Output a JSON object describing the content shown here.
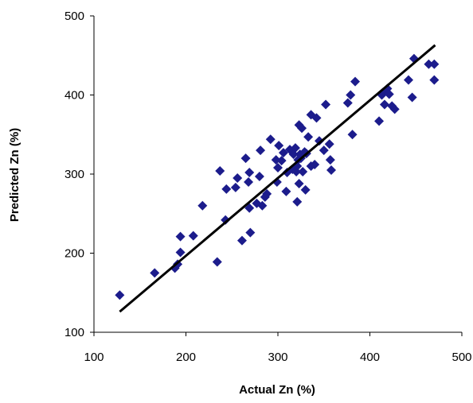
{
  "chart_data": {
    "type": "scatter",
    "title": "",
    "xlabel": "Actual Zn (%)",
    "ylabel": "Predicted Zn (%)",
    "xlim": [
      100,
      500
    ],
    "ylim": [
      100,
      500
    ],
    "xticks": [
      "100",
      "200",
      "300",
      "400",
      "500"
    ],
    "yticks": [
      "100",
      "200",
      "300",
      "400",
      "500"
    ],
    "grid": false,
    "legend": "none",
    "marker": "diamond",
    "marker_color": "#1c1c8c",
    "line_color": "#000000",
    "series": [
      {
        "points": [
          [
            128,
            147
          ],
          [
            166,
            175
          ],
          [
            188,
            181
          ],
          [
            191,
            186
          ],
          [
            194,
            201
          ],
          [
            194,
            221
          ],
          [
            208,
            222
          ],
          [
            218,
            260
          ],
          [
            234,
            189
          ],
          [
            237,
            304
          ],
          [
            243,
            242
          ],
          [
            244,
            281
          ],
          [
            254,
            283
          ],
          [
            256,
            295
          ],
          [
            261,
            216
          ],
          [
            265,
            320
          ],
          [
            268,
            290
          ],
          [
            269,
            257
          ],
          [
            269,
            302
          ],
          [
            270,
            226
          ],
          [
            277,
            263
          ],
          [
            280,
            297
          ],
          [
            281,
            330
          ],
          [
            283,
            260
          ],
          [
            286,
            271
          ],
          [
            288,
            275
          ],
          [
            292,
            344
          ],
          [
            298,
            318
          ],
          [
            299,
            290
          ],
          [
            300,
            308
          ],
          [
            301,
            336
          ],
          [
            304,
            317
          ],
          [
            306,
            327
          ],
          [
            309,
            278
          ],
          [
            310,
            302
          ],
          [
            313,
            331
          ],
          [
            316,
            306
          ],
          [
            317,
            325
          ],
          [
            319,
            333
          ],
          [
            320,
            303
          ],
          [
            321,
            265
          ],
          [
            321,
            310
          ],
          [
            322,
            318
          ],
          [
            323,
            362
          ],
          [
            323,
            288
          ],
          [
            324,
            325
          ],
          [
            325,
            320
          ],
          [
            326,
            358
          ],
          [
            327,
            303
          ],
          [
            329,
            328
          ],
          [
            330,
            280
          ],
          [
            331,
            326
          ],
          [
            333,
            347
          ],
          [
            336,
            310
          ],
          [
            336,
            375
          ],
          [
            340,
            312
          ],
          [
            342,
            371
          ],
          [
            345,
            342
          ],
          [
            350,
            330
          ],
          [
            352,
            388
          ],
          [
            356,
            338
          ],
          [
            357,
            318
          ],
          [
            358,
            305
          ],
          [
            376,
            390
          ],
          [
            379,
            400
          ],
          [
            381,
            350
          ],
          [
            384,
            417
          ],
          [
            410,
            367
          ],
          [
            413,
            400
          ],
          [
            414,
            403
          ],
          [
            416,
            388
          ],
          [
            419,
            408
          ],
          [
            421,
            401
          ],
          [
            424,
            386
          ],
          [
            427,
            382
          ],
          [
            442,
            419
          ],
          [
            446,
            397
          ],
          [
            448,
            446
          ],
          [
            464,
            439
          ],
          [
            470,
            419
          ],
          [
            470,
            439
          ]
        ]
      }
    ],
    "trendline": {
      "x": [
        128,
        471
      ],
      "y": [
        126,
        463
      ]
    }
  }
}
